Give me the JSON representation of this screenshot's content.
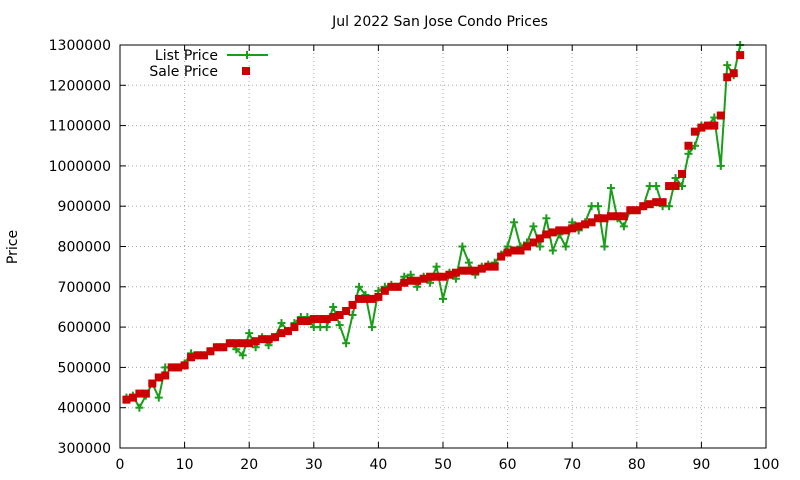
{
  "chart_data": {
    "type": "line",
    "title": "Jul 2022 San Jose Condo Prices",
    "xlabel": "",
    "ylabel": "Price",
    "xlim": [
      0,
      100
    ],
    "ylim": [
      300000,
      1300000
    ],
    "x_ticks": [
      "0",
      "10",
      "20",
      "30",
      "40",
      "50",
      "60",
      "70",
      "80",
      "90",
      "100"
    ],
    "y_ticks": [
      "300000",
      "400000",
      "500000",
      "600000",
      "700000",
      "800000",
      "900000",
      "1000000",
      "1100000",
      "1200000",
      "1300000"
    ],
    "grid": true,
    "legend_position": "top-left",
    "colors": {
      "list": "#1a9e1a",
      "sale": "#cc0000",
      "grid": "#aaaaaa",
      "axis": "#000000"
    },
    "x": [
      1,
      2,
      3,
      4,
      5,
      6,
      7,
      8,
      9,
      10,
      11,
      12,
      13,
      14,
      15,
      16,
      17,
      18,
      19,
      20,
      21,
      22,
      23,
      24,
      25,
      26,
      27,
      28,
      29,
      30,
      31,
      32,
      33,
      34,
      35,
      36,
      37,
      38,
      39,
      40,
      41,
      42,
      43,
      44,
      45,
      46,
      47,
      48,
      49,
      50,
      51,
      52,
      53,
      54,
      55,
      56,
      57,
      58,
      59,
      60,
      61,
      62,
      63,
      64,
      65,
      66,
      67,
      68,
      69,
      70,
      71,
      72,
      73,
      74,
      75,
      76,
      77,
      78,
      79,
      80,
      81,
      82,
      83,
      84,
      85,
      86,
      87,
      88,
      89,
      90,
      91,
      92,
      93,
      94,
      95,
      96
    ],
    "series": [
      {
        "name": "List Price",
        "style": "line+cross",
        "values": [
          425000,
          430000,
          400000,
          430000,
          460000,
          425000,
          500000,
          500000,
          500000,
          510000,
          535000,
          530000,
          530000,
          540000,
          550000,
          550000,
          560000,
          545000,
          530000,
          585000,
          550000,
          575000,
          555000,
          575000,
          610000,
          590000,
          610000,
          625000,
          625000,
          600000,
          600000,
          600000,
          650000,
          605000,
          560000,
          630000,
          700000,
          680000,
          600000,
          690000,
          700000,
          705000,
          700000,
          725000,
          730000,
          700000,
          725000,
          710000,
          750000,
          670000,
          735000,
          720000,
          800000,
          760000,
          730000,
          750000,
          755000,
          760000,
          780000,
          800000,
          860000,
          800000,
          810000,
          850000,
          800000,
          870000,
          790000,
          830000,
          800000,
          860000,
          840000,
          860000,
          900000,
          900000,
          800000,
          945000,
          870000,
          850000,
          890000,
          890000,
          900000,
          950000,
          950000,
          900000,
          900000,
          970000,
          950000,
          1030000,
          1050000,
          1100000,
          1100000,
          1120000,
          1000000,
          1250000,
          1225000,
          1300000
        ]
      },
      {
        "name": "Sale Price",
        "style": "square",
        "values": [
          420000,
          425000,
          435000,
          435000,
          460000,
          475000,
          480000,
          500000,
          500000,
          505000,
          525000,
          530000,
          530000,
          540000,
          550000,
          550000,
          560000,
          560000,
          560000,
          560000,
          565000,
          570000,
          570000,
          575000,
          585000,
          590000,
          600000,
          615000,
          615000,
          620000,
          620000,
          620000,
          625000,
          630000,
          640000,
          655000,
          670000,
          670000,
          670000,
          675000,
          690000,
          700000,
          700000,
          710000,
          715000,
          715000,
          720000,
          725000,
          725000,
          725000,
          730000,
          735000,
          740000,
          740000,
          740000,
          745000,
          750000,
          750000,
          775000,
          785000,
          790000,
          790000,
          800000,
          810000,
          820000,
          830000,
          835000,
          840000,
          840000,
          845000,
          850000,
          855000,
          860000,
          870000,
          870000,
          875000,
          875000,
          875000,
          890000,
          890000,
          900000,
          905000,
          910000,
          910000,
          950000,
          950000,
          980000,
          1050000,
          1085000,
          1095000,
          1100000,
          1100000,
          1125000,
          1220000,
          1230000,
          1275000
        ]
      }
    ]
  }
}
